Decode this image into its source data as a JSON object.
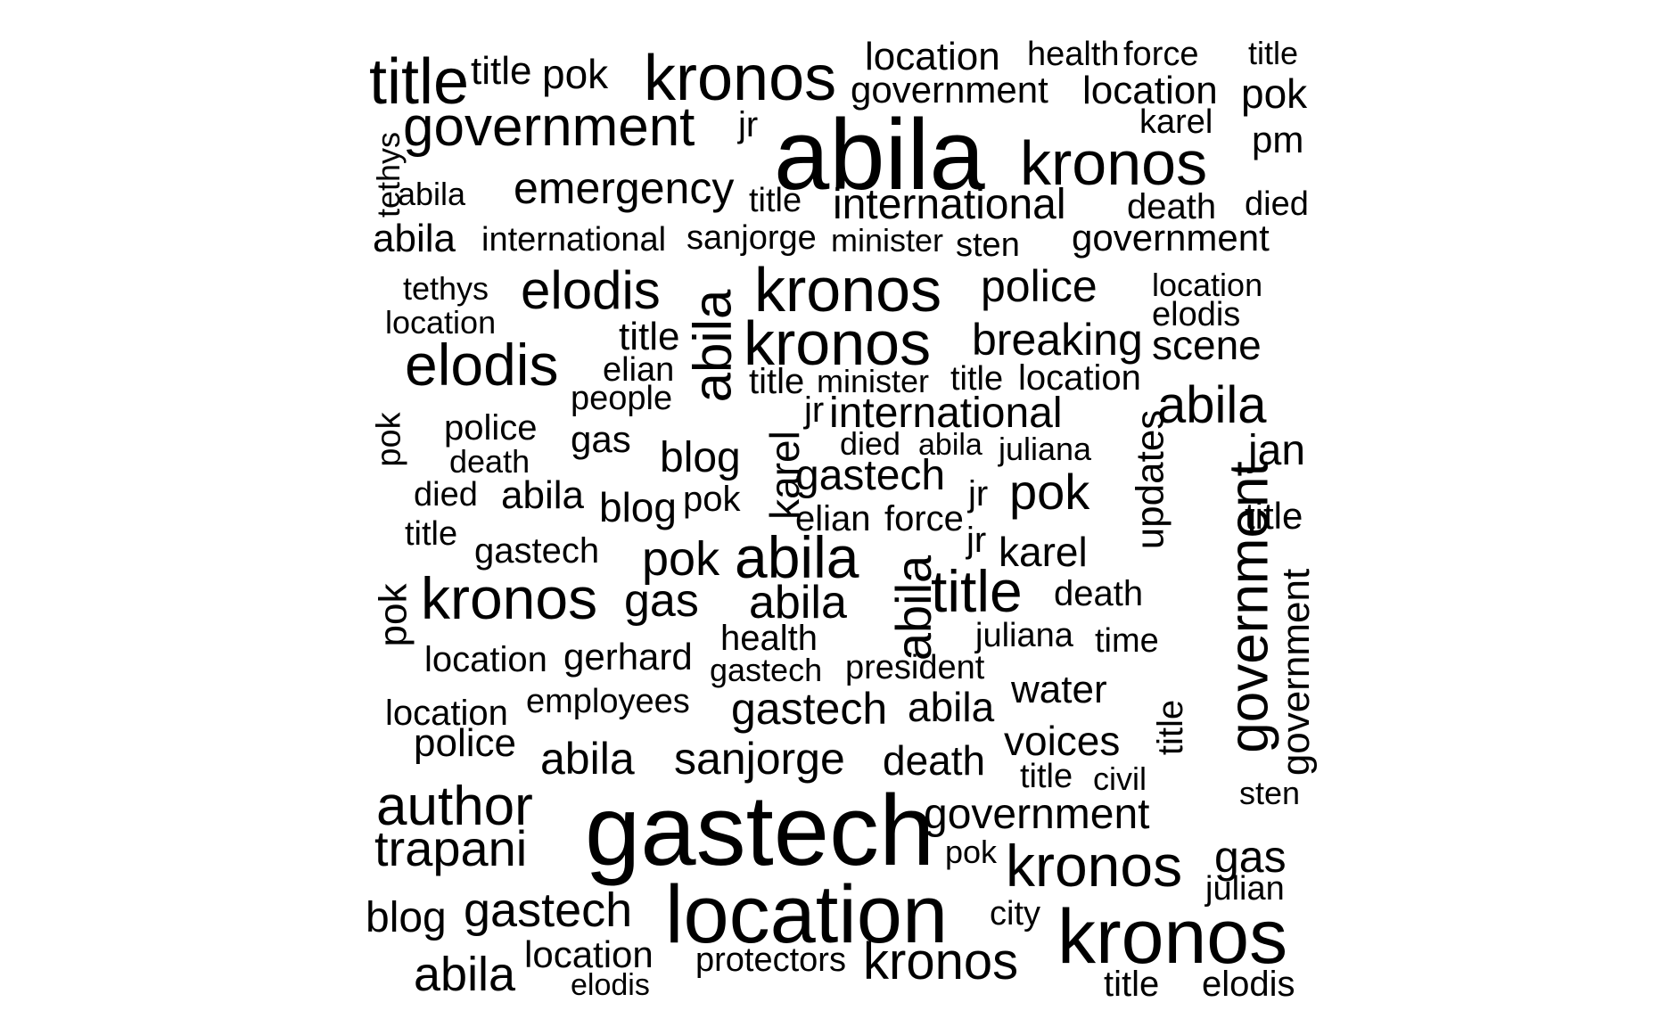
{
  "colors": {
    "background": "#ffffff",
    "text": "#000000"
  },
  "words": [
    "title",
    "title",
    "pok",
    "kronos",
    "location",
    "health",
    "force",
    "title",
    "government",
    "location",
    "pok",
    "government",
    "jr",
    "karel",
    "tethys",
    "abila",
    "kronos",
    "pm",
    "abila",
    "emergency",
    "title",
    "international",
    "death",
    "died",
    "abila",
    "international",
    "sanjorge",
    "minister",
    "sten",
    "government",
    "tethys",
    "elodis",
    "kronos",
    "police",
    "location",
    "abila",
    "location",
    "elodis",
    "title",
    "kronos",
    "breaking",
    "scene",
    "elodis",
    "elian",
    "title",
    "minister",
    "title",
    "location",
    "people",
    "jr",
    "international",
    "abila",
    "pok",
    "police",
    "gas",
    "died",
    "abila",
    "juliana",
    "updates",
    "jan",
    "death",
    "blog",
    "karel",
    "gastech",
    "died",
    "abila",
    "blog",
    "pok",
    "jr",
    "pok",
    "government",
    "title",
    "elian",
    "force",
    "title",
    "gastech",
    "pok",
    "abila",
    "jr",
    "karel",
    "pok",
    "kronos",
    "gas",
    "abila",
    "abila",
    "title",
    "death",
    "government",
    "health",
    "juliana",
    "time",
    "location",
    "gerhard",
    "gastech",
    "president",
    "water",
    "location",
    "employees",
    "gastech",
    "abila",
    "title",
    "police",
    "voices",
    "abila",
    "sanjorge",
    "death",
    "title",
    "civil",
    "author",
    "sten",
    "gastech",
    "government",
    "trapani",
    "pok",
    "kronos",
    "gas",
    "julian",
    "blog",
    "gastech",
    "location",
    "city",
    "kronos",
    "abila",
    "location",
    "protectors",
    "kronos",
    "title",
    "elodis",
    "elodis"
  ]
}
